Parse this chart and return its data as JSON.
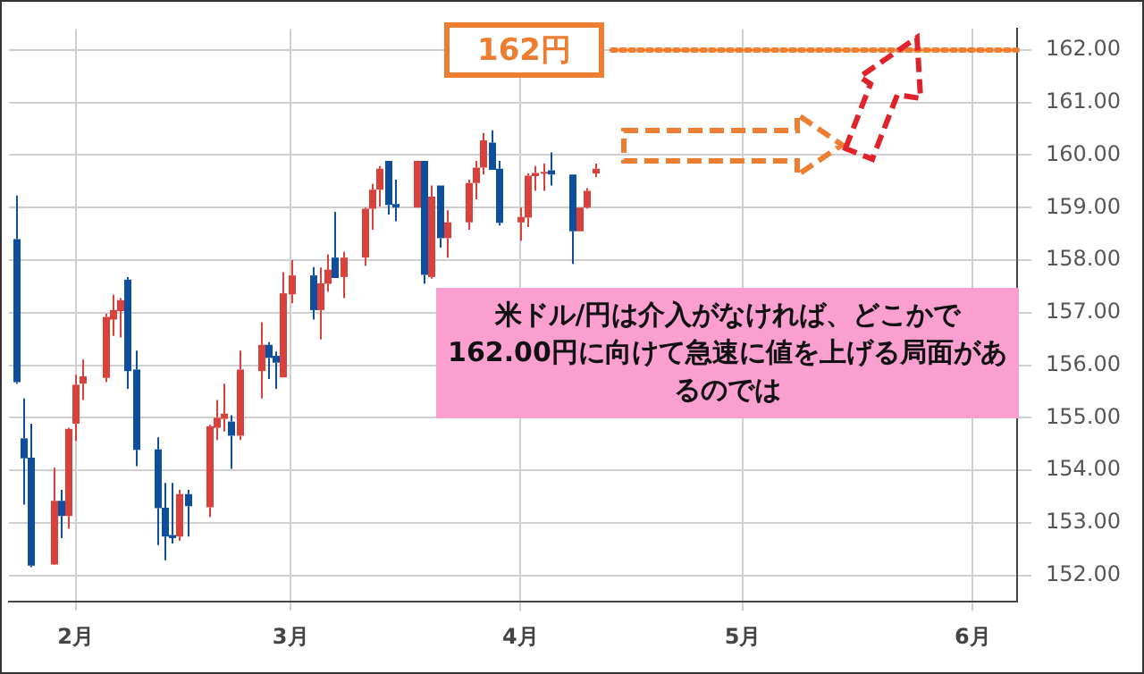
{
  "chart_data": {
    "type": "candlestick",
    "x": [
      "--01-24",
      "--01-25",
      "--01-26",
      "--01-29",
      "--01-30",
      "--01-31",
      "--02-01",
      "--02-02",
      "--02-05",
      "--02-06",
      "--02-07",
      "--02-08",
      "--02-09",
      "--02-12",
      "--02-13",
      "--02-14",
      "--02-15",
      "--02-16",
      "--02-19",
      "--02-20",
      "--02-21",
      "--02-22",
      "--02-23",
      "--02-26",
      "--02-27",
      "--02-28",
      "--02-29",
      "--03-01",
      "--03-04",
      "--03-05",
      "--03-06",
      "--03-07",
      "--03-08",
      "--03-11",
      "--03-12",
      "--03-13",
      "--03-14",
      "--03-15",
      "--03-18",
      "--03-19",
      "--03-20",
      "--03-21",
      "--03-22",
      "--03-25",
      "--03-26",
      "--03-27",
      "--03-28",
      "--03-29",
      "--04-01",
      "--04-02",
      "--04-03",
      "--04-04",
      "--04-05",
      "--04-08",
      "--04-09",
      "--04-10",
      "--04-11"
    ],
    "ohlc": [
      [
        158.4,
        159.23,
        155.65,
        155.68
      ],
      [
        154.61,
        155.37,
        153.35,
        154.23
      ],
      [
        154.24,
        154.89,
        152.16,
        152.19
      ],
      [
        152.21,
        154.05,
        152.2,
        153.42
      ],
      [
        153.42,
        153.63,
        152.71,
        153.13
      ],
      [
        153.13,
        154.81,
        152.89,
        154.79
      ],
      [
        154.89,
        155.82,
        154.56,
        155.63
      ],
      [
        155.65,
        156.11,
        155.34,
        155.79
      ],
      [
        155.76,
        156.98,
        155.68,
        156.92
      ],
      [
        156.87,
        157.34,
        156.56,
        157.05
      ],
      [
        157.03,
        157.28,
        156.53,
        157.24
      ],
      [
        157.63,
        157.68,
        155.55,
        155.89
      ],
      [
        155.92,
        156.28,
        154.08,
        154.39
      ],
      [
        154.4,
        154.63,
        152.58,
        153.28
      ],
      [
        153.29,
        153.76,
        152.29,
        152.74
      ],
      [
        152.77,
        153.76,
        152.61,
        152.71
      ],
      [
        152.74,
        153.63,
        152.66,
        153.55
      ],
      [
        153.55,
        153.63,
        152.74,
        153.32
      ],
      [
        153.3,
        154.87,
        153.11,
        154.84
      ],
      [
        154.81,
        155.34,
        154.58,
        155.0
      ],
      [
        154.98,
        155.65,
        154.74,
        155.08
      ],
      [
        154.93,
        155.05,
        154.03,
        154.66
      ],
      [
        154.66,
        156.28,
        154.58,
        155.92
      ],
      [
        155.89,
        156.82,
        155.37,
        156.39
      ],
      [
        156.39,
        156.44,
        155.74,
        156.14
      ],
      [
        156.18,
        156.26,
        155.55,
        156.05
      ],
      [
        155.77,
        157.77,
        155.77,
        157.37
      ],
      [
        157.35,
        158.0,
        157.18,
        157.71
      ],
      [
        157.71,
        157.87,
        156.87,
        157.05
      ],
      [
        157.05,
        157.86,
        156.49,
        157.56
      ],
      [
        157.55,
        158.11,
        157.4,
        157.82
      ],
      [
        158.05,
        158.92,
        157.66,
        157.66
      ],
      [
        157.68,
        158.16,
        157.28,
        158.05
      ],
      [
        158.05,
        159.0,
        157.89,
        158.98
      ],
      [
        158.98,
        159.45,
        158.58,
        159.34
      ],
      [
        159.34,
        159.79,
        159.02,
        159.74
      ],
      [
        159.89,
        159.89,
        158.87,
        159.05
      ],
      [
        159.07,
        159.53,
        158.74,
        159.0
      ],
      [
        159.0,
        159.89,
        159.0,
        159.89
      ],
      [
        159.89,
        159.89,
        157.55,
        157.72
      ],
      [
        157.68,
        159.42,
        157.65,
        159.21
      ],
      [
        159.42,
        159.42,
        158.24,
        158.42
      ],
      [
        158.42,
        158.95,
        158.05,
        158.72
      ],
      [
        158.72,
        159.53,
        158.58,
        159.47
      ],
      [
        159.47,
        159.89,
        159.16,
        159.76
      ],
      [
        159.76,
        160.42,
        159.63,
        160.28
      ],
      [
        160.24,
        160.47,
        159.72,
        159.72
      ],
      [
        159.74,
        159.89,
        158.66,
        158.71
      ],
      [
        158.72,
        159.0,
        158.37,
        158.82
      ],
      [
        158.81,
        159.65,
        158.63,
        159.61
      ],
      [
        159.6,
        159.79,
        159.32,
        159.66
      ],
      [
        159.65,
        159.84,
        159.32,
        159.68
      ],
      [
        159.71,
        160.05,
        159.42,
        159.63
      ],
      [
        159.63,
        159.63,
        157.93,
        158.55
      ],
      [
        158.55,
        159.0,
        158.55,
        159.0
      ],
      [
        159.0,
        159.37,
        158.98,
        159.32
      ],
      [
        159.65,
        159.84,
        159.58,
        159.74
      ]
    ],
    "colors": [
      "#0d4f9e",
      "#0d4f9e",
      "#0d4f9e",
      "#d9413a",
      "#0d4f9e",
      "#d9413a",
      "#d9413a",
      "#d9413a",
      "#d9413a",
      "#d9413a",
      "#d9413a",
      "#0d4f9e",
      "#0d4f9e",
      "#0d4f9e",
      "#0d4f9e",
      "#0d4f9e",
      "#d9413a",
      "#0d4f9e",
      "#d9413a",
      "#d9413a",
      "#d9413a",
      "#0d4f9e",
      "#d9413a",
      "#d9413a",
      "#0d4f9e",
      "#0d4f9e",
      "#d9413a",
      "#d9413a",
      "#0d4f9e",
      "#d9413a",
      "#d9413a",
      "#0d4f9e",
      "#d9413a",
      "#d9413a",
      "#d9413a",
      "#d9413a",
      "#0d4f9e",
      "#0d4f9e",
      "#d9413a",
      "#0d4f9e",
      "#d9413a",
      "#0d4f9e",
      "#d9413a",
      "#d9413a",
      "#d9413a",
      "#d9413a",
      "#0d4f9e",
      "#0d4f9e",
      "#d9413a",
      "#d9413a",
      "#d9413a",
      "#d9413a",
      "#0d4f9e",
      "#0d4f9e",
      "#d9413a",
      "#d9413a",
      "#d9413a"
    ],
    "xlim": [
      "--01-23",
      "--06-07"
    ],
    "xticks": [
      {
        "value": "--02-01",
        "label": "2月"
      },
      {
        "value": "--03-01",
        "label": "3月"
      },
      {
        "value": "--04-01",
        "label": "4月"
      },
      {
        "value": "--05-01",
        "label": "5月"
      },
      {
        "value": "--06-01",
        "label": "6月"
      }
    ],
    "ylim": [
      151.5,
      162.4
    ],
    "yticks": [
      {
        "value": 152,
        "label": "152.00"
      },
      {
        "value": 153,
        "label": "153.00"
      },
      {
        "value": 154,
        "label": "154.00"
      },
      {
        "value": 155,
        "label": "155.00"
      },
      {
        "value": 156,
        "label": "156.00"
      },
      {
        "value": 157,
        "label": "157.00"
      },
      {
        "value": 158,
        "label": "158.00"
      },
      {
        "value": 159,
        "label": "159.00"
      },
      {
        "value": 160,
        "label": "160.00"
      },
      {
        "value": 161,
        "label": "161.00"
      },
      {
        "value": 162,
        "label": "162.00"
      }
    ],
    "grid": true,
    "ref_lines": [
      {
        "axis": "y",
        "value": 162,
        "label": "162円",
        "color": "#ed7d31",
        "line_style": "dotted"
      }
    ],
    "annotations": [
      "米ドル/円は介入がなければ、どこかで162.00円に向けて急速に値を上げる局面があるのでは"
    ]
  }
}
